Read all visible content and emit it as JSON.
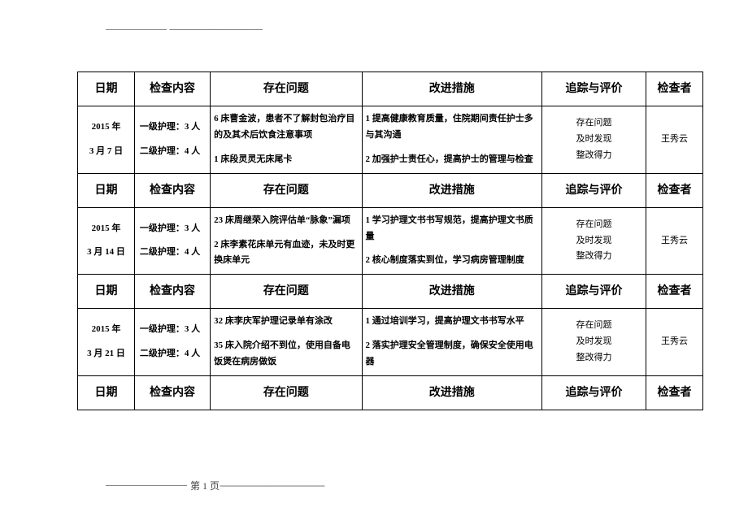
{
  "headers": {
    "date": "日期",
    "check": "检查内容",
    "issue": "存在问题",
    "improve": "改进措施",
    "track": "追踪与评价",
    "who": "检查者"
  },
  "rows": [
    {
      "year": "2015 年",
      "monthday": "3 月 7 日",
      "check_l1": "一级护理：3 人",
      "check_l2": "二级护理：4 人",
      "issue_l1": "6 床曹金波，患者不了解封包治疗目的及其术后饮食注意事项",
      "issue_l2": "1 床段灵灵无床尾卡",
      "improve_l1": "1 提高健康教育质量，住院期间责任护士多与其沟通",
      "improve_l2": "2 加强护士责任心，提高护士的管理与检查",
      "track_l1": "存在问题",
      "track_l2": "及时发现",
      "track_l3": "整改得力",
      "who": "王秀云"
    },
    {
      "year": "2015 年",
      "monthday": "3 月 14 日",
      "check_l1": "一级护理：3 人",
      "check_l2": "二级护理：4 人",
      "issue_l1": "23 床周继荣入院评估单“脉象”漏项",
      "issue_l2": "2 床李素花床单元有血迹，未及时更换床单元",
      "improve_l1": "1 学习护理文书书写规范，提高护理文书质量",
      "improve_l2": "2 核心制度落实到位，学习病房管理制度",
      "track_l1": "存在问题",
      "track_l2": "及时发现",
      "track_l3": "整改得力",
      "who": "王秀云"
    },
    {
      "year": "2015 年",
      "monthday": "3 月 21 日",
      "check_l1": "一级护理：3 人",
      "check_l2": "二级护理：4 人",
      "issue_l1": "32 床李庆军护理记录单有涂改",
      "issue_l2": "35 床入院介绍不到位，使用自备电饭煲在病房做饭",
      "improve_l1": "1 通过培训学习，提高护理文书书写水平",
      "improve_l2": "2 落实护理安全管理制度，确保安全使用电器",
      "track_l1": "存在问题",
      "track_l2": "及时发现",
      "track_l3": "整改得力",
      "who": "王秀云"
    }
  ],
  "footer": {
    "page": "第 1 页"
  },
  "dashes": "-------------------------------------------"
}
